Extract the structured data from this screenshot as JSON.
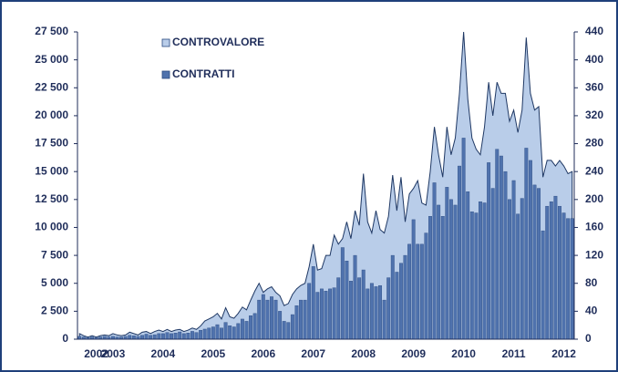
{
  "chart_data": {
    "type": "bar_area",
    "categories": [
      null,
      null,
      null,
      null,
      "2002",
      null,
      null,
      null,
      "2003",
      null,
      null,
      null,
      null,
      null,
      null,
      null,
      null,
      null,
      null,
      null,
      "2004",
      null,
      null,
      null,
      null,
      null,
      null,
      null,
      null,
      null,
      null,
      null,
      "2005",
      null,
      null,
      null,
      null,
      null,
      null,
      null,
      null,
      null,
      null,
      null,
      "2006",
      null,
      null,
      null,
      null,
      null,
      null,
      null,
      null,
      null,
      null,
      null,
      "2007",
      null,
      null,
      null,
      null,
      null,
      null,
      null,
      null,
      null,
      null,
      null,
      "2008",
      null,
      null,
      null,
      null,
      null,
      null,
      null,
      null,
      null,
      null,
      null,
      "2009",
      null,
      null,
      null,
      null,
      null,
      null,
      null,
      null,
      null,
      null,
      null,
      "2010",
      null,
      null,
      null,
      null,
      null,
      null,
      null,
      null,
      null,
      null,
      null,
      "2011",
      null,
      null,
      null,
      null,
      null,
      null,
      null,
      null,
      null,
      null,
      null,
      "2012",
      null,
      null
    ],
    "series": [
      {
        "name": "CONTROVALORE",
        "type": "area",
        "axis": "y2",
        "color": "#b9cde9",
        "values": [
          8,
          5,
          3,
          5,
          3,
          5,
          6,
          5,
          8,
          6,
          5,
          6,
          10,
          8,
          6,
          10,
          11,
          8,
          11,
          13,
          11,
          14,
          11,
          13,
          14,
          11,
          13,
          16,
          14,
          19,
          26,
          29,
          32,
          37,
          29,
          45,
          32,
          30,
          37,
          46,
          42,
          56,
          69,
          80,
          67,
          72,
          75,
          67,
          62,
          48,
          51,
          64,
          72,
          77,
          80,
          104,
          136,
          99,
          101,
          120,
          120,
          149,
          136,
          144,
          168,
          144,
          184,
          163,
          237,
          168,
          152,
          184,
          157,
          152,
          176,
          235,
          184,
          232,
          168,
          208,
          216,
          227,
          195,
          192,
          240,
          304,
          264,
          232,
          304,
          264,
          288,
          352,
          440,
          344,
          288,
          272,
          264,
          304,
          368,
          320,
          368,
          352,
          352,
          312,
          328,
          296,
          328,
          432,
          352,
          328,
          333,
          232,
          256,
          256,
          248,
          256,
          248,
          237,
          240
        ]
      },
      {
        "name": "CONTRATTI",
        "type": "bar",
        "color": "#4f72ad",
        "values": [
          250,
          200,
          150,
          200,
          150,
          200,
          250,
          200,
          250,
          200,
          200,
          250,
          350,
          300,
          250,
          350,
          450,
          350,
          400,
          500,
          500,
          600,
          500,
          550,
          650,
          500,
          550,
          700,
          600,
          800,
          900,
          1000,
          1100,
          1300,
          1000,
          1500,
          1200,
          1100,
          1400,
          1800,
          1600,
          2100,
          2300,
          3500,
          4000,
          3500,
          3800,
          3500,
          2500,
          1600,
          1500,
          2200,
          3000,
          3500,
          3500,
          5000,
          6500,
          4200,
          4500,
          4300,
          4500,
          4600,
          5500,
          8200,
          7000,
          5200,
          7500,
          5500,
          6200,
          4500,
          5000,
          4700,
          4800,
          3500,
          5500,
          7500,
          6000,
          6800,
          7500,
          8500,
          10700,
          8500,
          8500,
          9500,
          11000,
          14000,
          12000,
          11000,
          13600,
          12500,
          12000,
          15500,
          18000,
          13200,
          11400,
          11300,
          12300,
          12200,
          15800,
          13500,
          17000,
          16400,
          15000,
          12500,
          14200,
          11200,
          12600,
          17100,
          16000,
          13800,
          13500,
          9700,
          11900,
          12300,
          12800,
          11900,
          11300,
          10800,
          10800
        ]
      }
    ],
    "ylim": [
      0,
      27500
    ],
    "yticks": [
      0,
      {
        "value": 2500,
        "label": "2 500"
      },
      {
        "value": 5000,
        "label": "5 000"
      },
      {
        "value": 7500,
        "label": "7 500"
      },
      {
        "value": 10000,
        "label": "10 000"
      },
      {
        "value": 12500,
        "label": "12 500"
      },
      {
        "value": 15000,
        "label": "15 000"
      },
      {
        "value": 17500,
        "label": "17 500"
      },
      {
        "value": 20000,
        "label": "20 000"
      },
      {
        "value": 22500,
        "label": "22 500"
      },
      {
        "value": 25000,
        "label": "25 000"
      },
      {
        "value": 27500,
        "label": "27 500"
      }
    ],
    "y2lim": [
      0,
      440
    ],
    "y2ticks": [
      0,
      40,
      80,
      120,
      160,
      200,
      240,
      280,
      320,
      360,
      400,
      440
    ],
    "legend": "top-left"
  }
}
